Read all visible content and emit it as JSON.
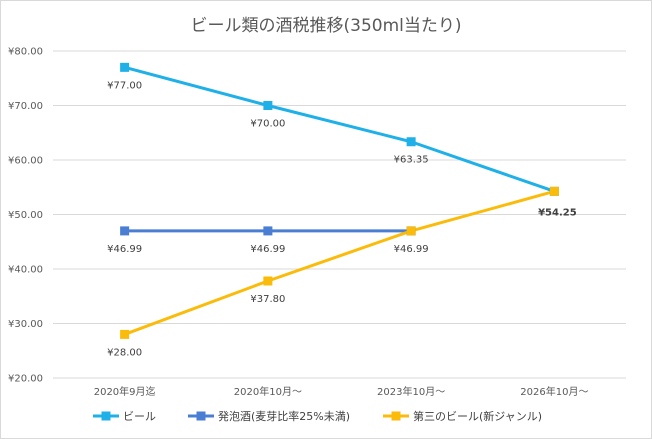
{
  "chart_data": {
    "type": "line",
    "title": "ビール類の酒税推移(350ml当たり)",
    "xlabel": "",
    "ylabel": "",
    "categories": [
      "2020年9月迄",
      "2020年10月～",
      "2023年10月～",
      "2026年10月～"
    ],
    "ylim": [
      20,
      80
    ],
    "yticks": [
      20,
      30,
      40,
      50,
      60,
      70,
      80
    ],
    "ytick_labels": [
      "¥20.00",
      "¥30.00",
      "¥40.00",
      "¥50.00",
      "¥60.00",
      "¥70.00",
      "¥80.00"
    ],
    "grid": true,
    "legend_position": "bottom",
    "series": [
      {
        "name": "ビール",
        "color": "#1fb0e8",
        "values": [
          77.0,
          70.0,
          63.35,
          54.25
        ],
        "labels": [
          "¥77.00",
          "¥70.00",
          "¥63.35",
          ""
        ]
      },
      {
        "name": "発泡酒(麦芽比率25%未満)",
        "color": "#4a7ed2",
        "values": [
          46.99,
          46.99,
          46.99,
          null
        ],
        "labels": [
          "¥46.99",
          "¥46.99",
          "¥46.99",
          ""
        ]
      },
      {
        "name": "第三のビール(新ジャンル)",
        "color": "#fbbb0b",
        "values": [
          28.0,
          37.8,
          46.99,
          54.25
        ],
        "labels": [
          "¥28.00",
          "¥37.80",
          "",
          "¥54.25"
        ]
      }
    ]
  }
}
